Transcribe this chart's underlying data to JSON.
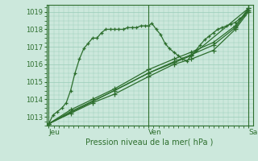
{
  "background_color": "#cce8dc",
  "plot_bg_color": "#cce8dc",
  "grid_color": "#99ccb8",
  "line_color": "#2d6e2d",
  "marker_color": "#2d6e2d",
  "xlabel": "Pression niveau de la mer( hPa )",
  "ylim": [
    1012.5,
    1019.4
  ],
  "yticks": [
    1013,
    1014,
    1015,
    1016,
    1017,
    1018,
    1019
  ],
  "xtick_labels": [
    "Jeu",
    "Ven",
    "Sam"
  ],
  "xtick_positions": [
    0.0,
    0.455,
    0.91
  ],
  "vline_positions": [
    0.0,
    0.455,
    0.91
  ],
  "lines": [
    {
      "x": [
        0.0,
        0.02,
        0.04,
        0.06,
        0.08,
        0.1,
        0.12,
        0.14,
        0.16,
        0.18,
        0.2,
        0.22,
        0.24,
        0.26,
        0.28,
        0.3,
        0.32,
        0.34,
        0.36,
        0.38,
        0.4,
        0.42,
        0.44,
        0.455,
        0.47,
        0.49,
        0.51,
        0.53,
        0.55,
        0.57,
        0.59,
        0.61,
        0.63,
        0.65,
        0.67,
        0.69,
        0.71,
        0.73,
        0.75,
        0.77,
        0.79,
        0.81,
        0.83,
        0.85,
        0.87,
        0.89,
        0.91
      ],
      "y": [
        1012.6,
        1013.1,
        1013.3,
        1013.5,
        1013.8,
        1014.5,
        1015.5,
        1016.3,
        1016.9,
        1017.2,
        1017.5,
        1017.5,
        1017.8,
        1018.0,
        1018.0,
        1018.0,
        1018.0,
        1018.0,
        1018.1,
        1018.1,
        1018.1,
        1018.2,
        1018.2,
        1018.2,
        1018.35,
        1018.0,
        1017.7,
        1017.2,
        1016.9,
        1016.7,
        1016.5,
        1016.3,
        1016.2,
        1016.5,
        1016.8,
        1017.1,
        1017.4,
        1017.6,
        1017.8,
        1018.0,
        1018.1,
        1018.2,
        1018.3,
        1018.4,
        1018.6,
        1018.8,
        1019.1
      ]
    },
    {
      "x": [
        0.0,
        0.455,
        0.65,
        0.91
      ],
      "y": [
        1012.6,
        1015.5,
        1016.5,
        1019.2
      ]
    },
    {
      "x": [
        0.0,
        0.1,
        0.2,
        0.3,
        0.455,
        0.57,
        0.65,
        0.75,
        0.85,
        0.91
      ],
      "y": [
        1012.6,
        1013.2,
        1013.8,
        1014.3,
        1015.3,
        1016.0,
        1016.3,
        1016.8,
        1018.0,
        1019.0
      ]
    },
    {
      "x": [
        0.0,
        0.1,
        0.2,
        0.3,
        0.455,
        0.57,
        0.65,
        0.75,
        0.85,
        0.91
      ],
      "y": [
        1012.6,
        1013.3,
        1013.9,
        1014.5,
        1015.5,
        1016.15,
        1016.55,
        1017.1,
        1018.1,
        1019.1
      ]
    },
    {
      "x": [
        0.0,
        0.1,
        0.2,
        0.3,
        0.455,
        0.57,
        0.65,
        0.75,
        0.85,
        0.91
      ],
      "y": [
        1012.6,
        1013.4,
        1014.0,
        1014.6,
        1015.7,
        1016.3,
        1016.7,
        1017.25,
        1018.2,
        1019.2
      ]
    }
  ]
}
